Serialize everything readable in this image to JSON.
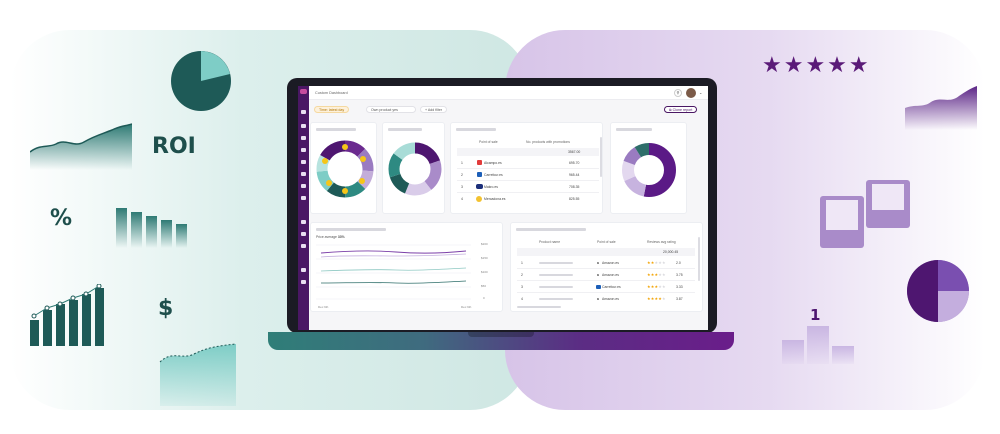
{
  "decor": {
    "roi_label": "ROI",
    "percent_label": "%",
    "dollar_label": "$",
    "podium_label": "1",
    "stars": "★★★★★",
    "colors": {
      "teal_dark": "#1e5a57",
      "teal_light": "#7ecdc6",
      "purple_dark": "#4e1670",
      "purple_light": "#a98bc9"
    }
  },
  "dashboard": {
    "title": "Custom Dashboard",
    "filters": {
      "time": "Time: latest day",
      "own_product": "Own product yes",
      "add_filter": "+ Add filter"
    },
    "clone_report": "Clone report",
    "table_pos": {
      "headers": [
        "Point of sale",
        "No. products with promotions"
      ],
      "total": "3567.00",
      "rows": [
        {
          "rank": "1",
          "name": "Alcampo.es",
          "value": "695.70"
        },
        {
          "rank": "2",
          "name": "Carrefour.es",
          "value": "965.44"
        },
        {
          "rank": "3",
          "name": "Makro.es",
          "value": "708.35"
        },
        {
          "rank": "4",
          "name": "Mercadona.es",
          "value": "825.55"
        }
      ]
    },
    "line_chart": {
      "subtitle_prefix": "Price average ",
      "subtitle_value": "33%",
      "y_ticks": [
        "$200",
        "$150",
        "$100",
        "$50",
        "0"
      ],
      "x_ticks": [
        "Dec 9th",
        "Dec 9th"
      ]
    },
    "table_reviews": {
      "headers": [
        "Product name",
        "Point of sale",
        "Reviews avg rating"
      ],
      "total": "20,000.45",
      "rows": [
        {
          "rank": "1",
          "store": "Amazon.es",
          "rating": "2.0",
          "stars": 2
        },
        {
          "rank": "2",
          "store": "Amazon.es",
          "rating": "3.75",
          "stars": 3
        },
        {
          "rank": "3",
          "store": "Carrefour.es",
          "rating": "3.33",
          "stars": 3
        },
        {
          "rank": "4",
          "store": "Amazon.es",
          "rating": "3.87",
          "stars": 4
        }
      ]
    }
  }
}
